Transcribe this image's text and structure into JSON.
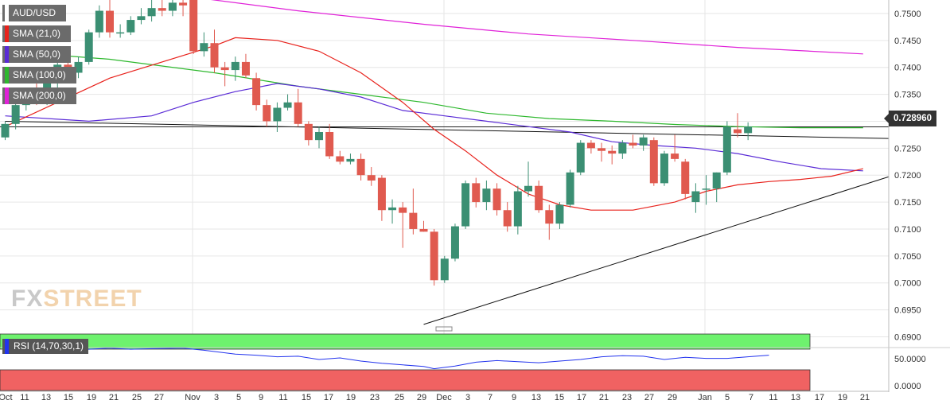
{
  "symbol": "AUD/USD",
  "current_price": "0.728960",
  "watermark": {
    "part1": "FX",
    "part2": "STREET"
  },
  "indicators": [
    {
      "label": "SMA (21,0)",
      "color": "#e8221c"
    },
    {
      "label": "SMA (50,0)",
      "color": "#5a2bd6"
    },
    {
      "label": "SMA (100,0)",
      "color": "#2eb82e"
    },
    {
      "label": "SMA (200,0)",
      "color": "#e021d8"
    }
  ],
  "rsi": {
    "label": "RSI (14,70,30,1)",
    "color": "#2233ee",
    "overbought_color": "#6ef26e",
    "oversold_color": "#f06262",
    "ticks": [
      "50.0000",
      "0.0000"
    ]
  },
  "colors": {
    "up": "#3b8f73",
    "down": "#e05a4f",
    "grid": "#e6e6e6",
    "background": "#ffffff"
  },
  "chart_data": {
    "type": "candlestick",
    "y_ticks": [
      "0.7500",
      "0.7450",
      "0.7400",
      "0.7350",
      "0.7300",
      "0.7250",
      "0.7200",
      "0.7150",
      "0.7100",
      "0.7050",
      "0.7000",
      "0.6950",
      "0.6900"
    ],
    "ylim": [
      0.688,
      0.7525
    ],
    "x_ticks": [
      "Oct",
      "11",
      "13",
      "15",
      "19",
      "21",
      "25",
      "27",
      "Nov",
      "3",
      "5",
      "9",
      "11",
      "15",
      "17",
      "19",
      "23",
      "25",
      "29",
      "Dec",
      "3",
      "7",
      "9",
      "13",
      "15",
      "17",
      "21",
      "23",
      "27",
      "29",
      "Jan",
      "5",
      "7",
      "11",
      "13",
      "17",
      "19",
      "21"
    ],
    "candles": [
      {
        "o": 0.727,
        "h": 0.73,
        "l": 0.7265,
        "c": 0.7295
      },
      {
        "o": 0.7295,
        "h": 0.734,
        "l": 0.7285,
        "c": 0.733
      },
      {
        "o": 0.733,
        "h": 0.736,
        "l": 0.732,
        "c": 0.7348
      },
      {
        "o": 0.7348,
        "h": 0.737,
        "l": 0.733,
        "c": 0.7335
      },
      {
        "o": 0.7335,
        "h": 0.738,
        "l": 0.733,
        "c": 0.7375
      },
      {
        "o": 0.7375,
        "h": 0.7415,
        "l": 0.736,
        "c": 0.7405
      },
      {
        "o": 0.7405,
        "h": 0.7425,
        "l": 0.7385,
        "c": 0.739
      },
      {
        "o": 0.739,
        "h": 0.742,
        "l": 0.738,
        "c": 0.741
      },
      {
        "o": 0.741,
        "h": 0.747,
        "l": 0.7405,
        "c": 0.7465
      },
      {
        "o": 0.7465,
        "h": 0.7515,
        "l": 0.7455,
        "c": 0.7505
      },
      {
        "o": 0.7505,
        "h": 0.7525,
        "l": 0.7455,
        "c": 0.7465
      },
      {
        "o": 0.7465,
        "h": 0.748,
        "l": 0.7455,
        "c": 0.7465
      },
      {
        "o": 0.7465,
        "h": 0.7495,
        "l": 0.746,
        "c": 0.7488
      },
      {
        "o": 0.7488,
        "h": 0.751,
        "l": 0.748,
        "c": 0.7495
      },
      {
        "o": 0.7495,
        "h": 0.7525,
        "l": 0.7485,
        "c": 0.751
      },
      {
        "o": 0.751,
        "h": 0.7525,
        "l": 0.7495,
        "c": 0.7505
      },
      {
        "o": 0.7505,
        "h": 0.7525,
        "l": 0.7495,
        "c": 0.752
      },
      {
        "o": 0.752,
        "h": 0.7525,
        "l": 0.7495,
        "c": 0.7515
      },
      {
        "o": 0.7525,
        "h": 0.7525,
        "l": 0.7425,
        "c": 0.743
      },
      {
        "o": 0.743,
        "h": 0.7465,
        "l": 0.742,
        "c": 0.7445
      },
      {
        "o": 0.7445,
        "h": 0.747,
        "l": 0.739,
        "c": 0.74
      },
      {
        "o": 0.74,
        "h": 0.741,
        "l": 0.7365,
        "c": 0.7395
      },
      {
        "o": 0.7395,
        "h": 0.742,
        "l": 0.7375,
        "c": 0.741
      },
      {
        "o": 0.741,
        "h": 0.7425,
        "l": 0.738,
        "c": 0.7385
      },
      {
        "o": 0.738,
        "h": 0.739,
        "l": 0.732,
        "c": 0.733
      },
      {
        "o": 0.733,
        "h": 0.734,
        "l": 0.729,
        "c": 0.73
      },
      {
        "o": 0.73,
        "h": 0.7335,
        "l": 0.728,
        "c": 0.7325
      },
      {
        "o": 0.7325,
        "h": 0.735,
        "l": 0.732,
        "c": 0.7335
      },
      {
        "o": 0.7335,
        "h": 0.736,
        "l": 0.729,
        "c": 0.7295
      },
      {
        "o": 0.7295,
        "h": 0.73,
        "l": 0.7255,
        "c": 0.7265
      },
      {
        "o": 0.7265,
        "h": 0.729,
        "l": 0.725,
        "c": 0.728
      },
      {
        "o": 0.728,
        "h": 0.7295,
        "l": 0.723,
        "c": 0.7235
      },
      {
        "o": 0.7235,
        "h": 0.7245,
        "l": 0.722,
        "c": 0.7225
      },
      {
        "o": 0.7225,
        "h": 0.724,
        "l": 0.722,
        "c": 0.723
      },
      {
        "o": 0.723,
        "h": 0.724,
        "l": 0.719,
        "c": 0.72
      },
      {
        "o": 0.72,
        "h": 0.7215,
        "l": 0.718,
        "c": 0.719
      },
      {
        "o": 0.7195,
        "h": 0.72,
        "l": 0.7115,
        "c": 0.7135
      },
      {
        "o": 0.7135,
        "h": 0.7155,
        "l": 0.711,
        "c": 0.714
      },
      {
        "o": 0.714,
        "h": 0.715,
        "l": 0.7065,
        "c": 0.713
      },
      {
        "o": 0.713,
        "h": 0.7175,
        "l": 0.709,
        "c": 0.71
      },
      {
        "o": 0.71,
        "h": 0.7115,
        "l": 0.7095,
        "c": 0.7095
      },
      {
        "o": 0.7095,
        "h": 0.71,
        "l": 0.6995,
        "c": 0.7005
      },
      {
        "o": 0.7005,
        "h": 0.705,
        "l": 0.7,
        "c": 0.7045
      },
      {
        "o": 0.7045,
        "h": 0.711,
        "l": 0.704,
        "c": 0.7105
      },
      {
        "o": 0.7105,
        "h": 0.719,
        "l": 0.71,
        "c": 0.7185
      },
      {
        "o": 0.7185,
        "h": 0.7195,
        "l": 0.714,
        "c": 0.715
      },
      {
        "o": 0.715,
        "h": 0.719,
        "l": 0.7135,
        "c": 0.7175
      },
      {
        "o": 0.7175,
        "h": 0.7185,
        "l": 0.7125,
        "c": 0.7135
      },
      {
        "o": 0.7135,
        "h": 0.715,
        "l": 0.7095,
        "c": 0.7105
      },
      {
        "o": 0.7105,
        "h": 0.718,
        "l": 0.709,
        "c": 0.717
      },
      {
        "o": 0.717,
        "h": 0.7225,
        "l": 0.716,
        "c": 0.718
      },
      {
        "o": 0.718,
        "h": 0.719,
        "l": 0.713,
        "c": 0.7135
      },
      {
        "o": 0.7135,
        "h": 0.7145,
        "l": 0.708,
        "c": 0.711
      },
      {
        "o": 0.711,
        "h": 0.715,
        "l": 0.71,
        "c": 0.7145
      },
      {
        "o": 0.7145,
        "h": 0.721,
        "l": 0.714,
        "c": 0.7205
      },
      {
        "o": 0.7205,
        "h": 0.7265,
        "l": 0.72,
        "c": 0.726
      },
      {
        "o": 0.726,
        "h": 0.7265,
        "l": 0.724,
        "c": 0.725
      },
      {
        "o": 0.725,
        "h": 0.726,
        "l": 0.7225,
        "c": 0.7245
      },
      {
        "o": 0.7245,
        "h": 0.7255,
        "l": 0.722,
        "c": 0.724
      },
      {
        "o": 0.724,
        "h": 0.7265,
        "l": 0.723,
        "c": 0.726
      },
      {
        "o": 0.726,
        "h": 0.7275,
        "l": 0.725,
        "c": 0.7255
      },
      {
        "o": 0.7255,
        "h": 0.7275,
        "l": 0.7245,
        "c": 0.727
      },
      {
        "o": 0.7265,
        "h": 0.727,
        "l": 0.718,
        "c": 0.7185
      },
      {
        "o": 0.7185,
        "h": 0.7245,
        "l": 0.718,
        "c": 0.724
      },
      {
        "o": 0.724,
        "h": 0.7275,
        "l": 0.7225,
        "c": 0.723
      },
      {
        "o": 0.7225,
        "h": 0.723,
        "l": 0.7155,
        "c": 0.7165
      },
      {
        "o": 0.715,
        "h": 0.7185,
        "l": 0.713,
        "c": 0.717
      },
      {
        "o": 0.7175,
        "h": 0.72,
        "l": 0.7145,
        "c": 0.7175
      },
      {
        "o": 0.7175,
        "h": 0.7205,
        "l": 0.715,
        "c": 0.7205
      },
      {
        "o": 0.7205,
        "h": 0.73,
        "l": 0.72,
        "c": 0.729
      },
      {
        "o": 0.7285,
        "h": 0.7315,
        "l": 0.727,
        "c": 0.7278
      },
      {
        "o": 0.7278,
        "h": 0.7298,
        "l": 0.7265,
        "c": 0.729
      }
    ],
    "sma_21": [
      [
        0,
        0.729
      ],
      [
        10,
        0.738
      ],
      [
        20,
        0.744
      ],
      [
        22,
        0.7455
      ],
      [
        26,
        0.745
      ],
      [
        30,
        0.743
      ],
      [
        34,
        0.739
      ],
      [
        38,
        0.7335
      ],
      [
        41,
        0.7285
      ],
      [
        44,
        0.7245
      ],
      [
        47,
        0.72
      ],
      [
        50,
        0.7165
      ],
      [
        53,
        0.7145
      ],
      [
        56,
        0.7135
      ],
      [
        60,
        0.7135
      ],
      [
        64,
        0.715
      ],
      [
        67,
        0.717
      ],
      [
        70,
        0.7182
      ],
      [
        73,
        0.7188
      ],
      [
        76,
        0.7192
      ],
      [
        79,
        0.7198
      ],
      [
        82,
        0.7212
      ]
    ],
    "sma_50": [
      [
        0,
        0.731
      ],
      [
        8,
        0.73
      ],
      [
        14,
        0.731
      ],
      [
        18,
        0.7335
      ],
      [
        22,
        0.7355
      ],
      [
        26,
        0.737
      ],
      [
        30,
        0.736
      ],
      [
        34,
        0.7345
      ],
      [
        38,
        0.732
      ],
      [
        42,
        0.731
      ],
      [
        46,
        0.73
      ],
      [
        50,
        0.729
      ],
      [
        54,
        0.728
      ],
      [
        58,
        0.7262
      ],
      [
        62,
        0.7255
      ],
      [
        66,
        0.725
      ],
      [
        70,
        0.724
      ],
      [
        74,
        0.7225
      ],
      [
        78,
        0.7212
      ],
      [
        82,
        0.7208
      ]
    ],
    "sma_100": [
      [
        0,
        0.743
      ],
      [
        10,
        0.7415
      ],
      [
        20,
        0.739
      ],
      [
        28,
        0.7365
      ],
      [
        34,
        0.735
      ],
      [
        40,
        0.7335
      ],
      [
        46,
        0.7315
      ],
      [
        52,
        0.7305
      ],
      [
        58,
        0.73
      ],
      [
        64,
        0.7294
      ],
      [
        70,
        0.729
      ],
      [
        76,
        0.7288
      ],
      [
        82,
        0.7288
      ]
    ],
    "sma_200": [
      [
        0,
        0.753
      ],
      [
        18,
        0.753
      ],
      [
        28,
        0.7505
      ],
      [
        40,
        0.748
      ],
      [
        50,
        0.7462
      ],
      [
        60,
        0.745
      ],
      [
        70,
        0.7437
      ],
      [
        82,
        0.7425
      ]
    ],
    "trendlines": [
      {
        "from": [
          0,
          0.73
        ],
        "to": [
          101,
          0.7268
        ]
      },
      {
        "from": [
          40,
          0.6923
        ],
        "to": [
          101,
          0.7197
        ]
      }
    ],
    "current_level": 0.72896,
    "rsi_values": [
      [
        0,
        0.66
      ],
      [
        3,
        0.64
      ],
      [
        6,
        0.66
      ],
      [
        8,
        0.69
      ],
      [
        10,
        0.71
      ],
      [
        12,
        0.69
      ],
      [
        14,
        0.7
      ],
      [
        17,
        0.71
      ],
      [
        19,
        0.67
      ],
      [
        22,
        0.6
      ],
      [
        24,
        0.58
      ],
      [
        26,
        0.55
      ],
      [
        28,
        0.56
      ],
      [
        30,
        0.5
      ],
      [
        32,
        0.53
      ],
      [
        34,
        0.47
      ],
      [
        36,
        0.43
      ],
      [
        38,
        0.4
      ],
      [
        40,
        0.37
      ],
      [
        41,
        0.33
      ],
      [
        43,
        0.38
      ],
      [
        45,
        0.45
      ],
      [
        47,
        0.48
      ],
      [
        49,
        0.46
      ],
      [
        51,
        0.44
      ],
      [
        53,
        0.47
      ],
      [
        55,
        0.5
      ],
      [
        57,
        0.55
      ],
      [
        59,
        0.57
      ],
      [
        61,
        0.56
      ],
      [
        63,
        0.5
      ],
      [
        65,
        0.54
      ],
      [
        67,
        0.52
      ],
      [
        69,
        0.52
      ],
      [
        71,
        0.55
      ],
      [
        73,
        0.58
      ]
    ]
  }
}
